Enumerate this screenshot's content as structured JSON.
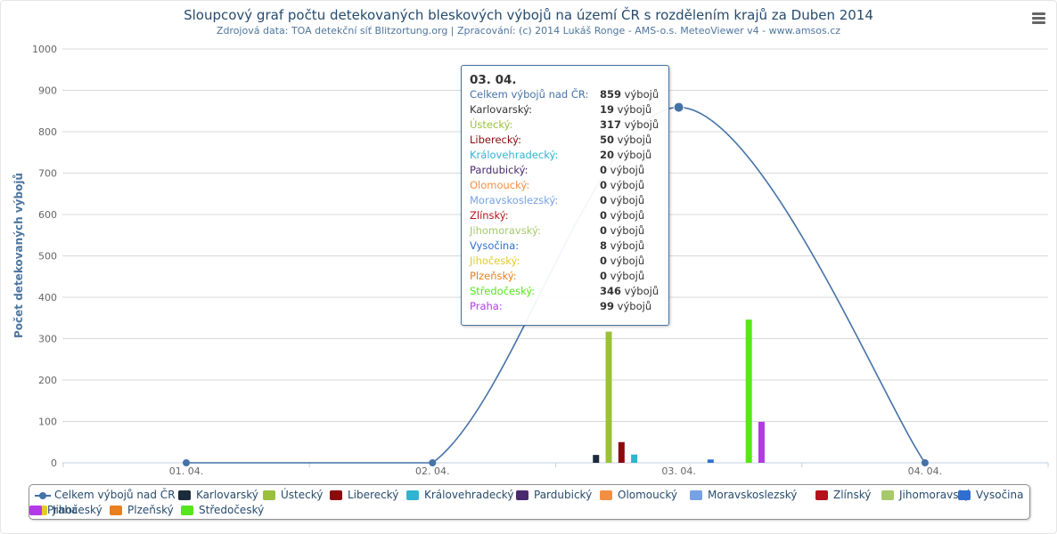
{
  "chart_data": {
    "type": "bar",
    "title": "Sloupcový graf počtu detekovaných bleskových výbojů na území ČR s rozdělením krajů za Duben 2014",
    "subtitle": "Zdrojová data: TOA detekční síť Blitzortung.org | Zpracování: (c) 2014 Lukáš Ronge - AMS-o.s. MeteoViewer v4 - www.amsos.cz",
    "ylabel": "Počet detekovaných výbojů",
    "ylim": [
      0,
      1000
    ],
    "yticks": [
      0,
      100,
      200,
      300,
      400,
      500,
      600,
      700,
      800,
      900,
      1000
    ],
    "categories": [
      "01. 04.",
      "02. 04.",
      "03. 04.",
      "04. 04."
    ],
    "grid": true,
    "legend_position": "bottom",
    "total_series": {
      "name": "Celkem výbojů nad ČR",
      "type": "spline",
      "color": "#4572a7",
      "values": [
        0,
        0,
        859,
        0
      ]
    },
    "series": [
      {
        "name": "Karlovarský",
        "color": "#1c2b3b",
        "values": [
          0,
          0,
          19,
          0
        ]
      },
      {
        "name": "Ústecký",
        "color": "#9bc03c",
        "values": [
          0,
          0,
          317,
          0
        ]
      },
      {
        "name": "Liberecký",
        "color": "#8b0a0e",
        "values": [
          0,
          0,
          50,
          0
        ]
      },
      {
        "name": "Královehradecký",
        "color": "#2fb4d0",
        "values": [
          0,
          0,
          20,
          0
        ]
      },
      {
        "name": "Pardubický",
        "color": "#4a2a6e",
        "values": [
          0,
          0,
          0,
          0
        ]
      },
      {
        "name": "Olomoucký",
        "color": "#f28f43",
        "values": [
          0,
          0,
          0,
          0
        ]
      },
      {
        "name": "Moravskoslezský",
        "color": "#77a1e5",
        "values": [
          0,
          0,
          0,
          0
        ]
      },
      {
        "name": "Zlínský",
        "color": "#b5121b",
        "values": [
          0,
          0,
          0,
          0
        ]
      },
      {
        "name": "Jihomoravský",
        "color": "#a6c96a",
        "values": [
          0,
          0,
          0,
          0
        ]
      },
      {
        "name": "Vysočina",
        "color": "#2f6fd0",
        "values": [
          0,
          0,
          8,
          0
        ]
      },
      {
        "name": "Jihočeský",
        "color": "#e3cb2b",
        "values": [
          0,
          0,
          0,
          0
        ]
      },
      {
        "name": "Plzeňský",
        "color": "#e8801f",
        "values": [
          0,
          0,
          0,
          0
        ]
      },
      {
        "name": "Středočeský",
        "color": "#55e61e",
        "values": [
          0,
          0,
          346,
          0
        ]
      },
      {
        "name": "Praha",
        "color": "#b23be8",
        "values": [
          0,
          0,
          99,
          0
        ]
      }
    ]
  },
  "tooltip": {
    "header": "03. 04.",
    "unit": "výbojů",
    "rows": [
      {
        "name": "Celkem výbojů nad ČR:",
        "value": "859",
        "color": "#4572a7"
      },
      {
        "name": "Karlovarský:",
        "value": "19",
        "color": "#333333"
      },
      {
        "name": "Ústecký:",
        "value": "317",
        "color": "#9bc03c"
      },
      {
        "name": "Liberecký:",
        "value": "50",
        "color": "#8b0a0e"
      },
      {
        "name": "Královehradecký:",
        "value": "20",
        "color": "#2fb4d0"
      },
      {
        "name": "Pardubický:",
        "value": "0",
        "color": "#4a2a6e"
      },
      {
        "name": "Olomoucký:",
        "value": "0",
        "color": "#f28f43"
      },
      {
        "name": "Moravskoslezský:",
        "value": "0",
        "color": "#77a1e5"
      },
      {
        "name": "Zlínský:",
        "value": "0",
        "color": "#b5121b"
      },
      {
        "name": "Jihomoravský:",
        "value": "0",
        "color": "#a6c96a"
      },
      {
        "name": "Vysočina:",
        "value": "8",
        "color": "#2f6fd0"
      },
      {
        "name": "Jihočeský:",
        "value": "0",
        "color": "#e3cb2b"
      },
      {
        "name": "Plzeňský:",
        "value": "0",
        "color": "#e8801f"
      },
      {
        "name": "Středočeský:",
        "value": "346",
        "color": "#55e61e"
      },
      {
        "name": "Praha:",
        "value": "99",
        "color": "#b23be8"
      }
    ]
  },
  "menu_icon": "hamburger-menu-icon"
}
